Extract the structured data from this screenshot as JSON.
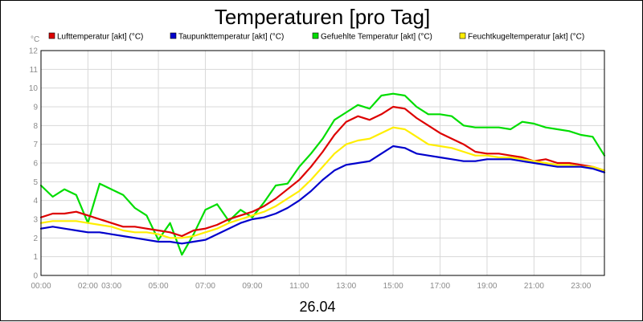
{
  "chart_data": {
    "type": "line",
    "title": "Temperaturen [pro Tag]",
    "y_unit": "°C",
    "date_label": "26.04",
    "ylim": [
      0,
      12
    ],
    "y_ticks": [
      "0",
      "1",
      "2",
      "3",
      "4",
      "5",
      "6",
      "7",
      "8",
      "9",
      "10",
      "11",
      "12"
    ],
    "xlim": [
      0,
      24
    ],
    "x_ticks": [
      {
        "x": 0,
        "label": "00:00"
      },
      {
        "x": 2,
        "label": "02:00"
      },
      {
        "x": 3,
        "label": "03:00"
      },
      {
        "x": 5,
        "label": "05:00"
      },
      {
        "x": 7,
        "label": "07:00"
      },
      {
        "x": 9,
        "label": "09:00"
      },
      {
        "x": 11,
        "label": "11:00"
      },
      {
        "x": 13,
        "label": "13:00"
      },
      {
        "x": 15,
        "label": "15:00"
      },
      {
        "x": 17,
        "label": "17:00"
      },
      {
        "x": 19,
        "label": "19:00"
      },
      {
        "x": 21,
        "label": "21:00"
      },
      {
        "x": 23,
        "label": "23:00"
      }
    ],
    "grid": true,
    "legend_position": "top",
    "x": [
      0,
      0.5,
      1,
      1.5,
      2,
      2.5,
      3,
      3.5,
      4,
      4.5,
      5,
      5.5,
      6,
      6.5,
      7,
      7.5,
      8,
      8.5,
      9,
      9.5,
      10,
      10.5,
      11,
      11.5,
      12,
      12.5,
      13,
      13.5,
      14,
      14.5,
      15,
      15.5,
      16,
      16.5,
      17,
      17.5,
      18,
      18.5,
      19,
      19.5,
      20,
      20.5,
      21,
      21.5,
      22,
      22.5,
      23,
      23.5,
      24
    ],
    "series": [
      {
        "name": "Lufttemperatur [akt] (°C)",
        "color": "#dd0000",
        "values": [
          3.1,
          3.3,
          3.3,
          3.4,
          3.2,
          3.0,
          2.8,
          2.6,
          2.6,
          2.5,
          2.4,
          2.3,
          2.1,
          2.4,
          2.5,
          2.7,
          3.0,
          3.2,
          3.4,
          3.7,
          4.1,
          4.6,
          5.1,
          5.8,
          6.6,
          7.5,
          8.2,
          8.5,
          8.3,
          8.6,
          9.0,
          8.9,
          8.4,
          8.0,
          7.6,
          7.3,
          7.0,
          6.6,
          6.5,
          6.5,
          6.4,
          6.3,
          6.1,
          6.2,
          6.0,
          6.0,
          5.9,
          5.8,
          5.6
        ]
      },
      {
        "name": "Taupunkttemperatur [akt] (°C)",
        "color": "#0000cc",
        "values": [
          2.5,
          2.6,
          2.5,
          2.4,
          2.3,
          2.3,
          2.2,
          2.1,
          2.0,
          1.9,
          1.8,
          1.8,
          1.7,
          1.8,
          1.9,
          2.2,
          2.5,
          2.8,
          3.0,
          3.1,
          3.3,
          3.6,
          4.0,
          4.5,
          5.1,
          5.6,
          5.9,
          6.0,
          6.1,
          6.5,
          6.9,
          6.8,
          6.5,
          6.4,
          6.3,
          6.2,
          6.1,
          6.1,
          6.2,
          6.2,
          6.2,
          6.1,
          6.0,
          5.9,
          5.8,
          5.8,
          5.8,
          5.7,
          5.5
        ]
      },
      {
        "name": "Gefuehlte Temperatur [akt] (°C)",
        "color": "#00dd00",
        "values": [
          4.8,
          4.2,
          4.6,
          4.3,
          2.8,
          4.9,
          4.6,
          4.3,
          3.6,
          3.2,
          1.9,
          2.8,
          1.1,
          2.2,
          3.5,
          3.8,
          2.9,
          3.5,
          3.1,
          3.9,
          4.8,
          4.9,
          5.8,
          6.5,
          7.3,
          8.3,
          8.7,
          9.1,
          8.9,
          9.6,
          9.7,
          9.6,
          9.0,
          8.6,
          8.6,
          8.5,
          8.0,
          7.9,
          7.9,
          7.9,
          7.8,
          8.2,
          8.1,
          7.9,
          7.8,
          7.7,
          7.5,
          7.4,
          6.4
        ]
      },
      {
        "name": "Feuchtkugeltemperatur [akt] (°C)",
        "color": "#ffee00",
        "values": [
          2.8,
          2.9,
          2.9,
          2.9,
          2.8,
          2.7,
          2.6,
          2.4,
          2.3,
          2.3,
          2.2,
          2.0,
          2.0,
          2.1,
          2.3,
          2.5,
          2.8,
          3.0,
          3.2,
          3.4,
          3.7,
          4.1,
          4.5,
          5.1,
          5.8,
          6.5,
          7.0,
          7.2,
          7.3,
          7.6,
          7.9,
          7.8,
          7.4,
          7.0,
          6.9,
          6.8,
          6.6,
          6.4,
          6.4,
          6.3,
          6.3,
          6.2,
          6.1,
          6.0,
          5.9,
          5.9,
          5.8,
          5.8,
          5.6
        ]
      }
    ]
  }
}
